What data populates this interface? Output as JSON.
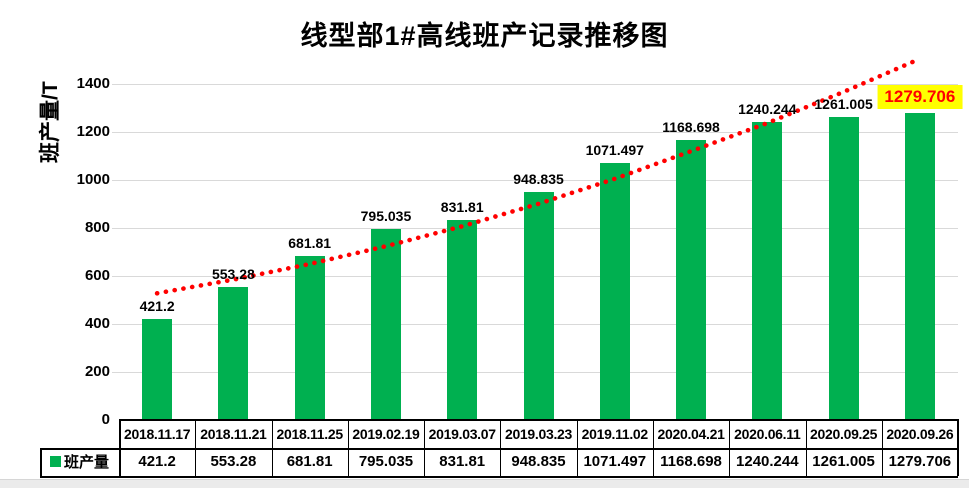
{
  "chart_data": {
    "type": "bar",
    "title": "线型部1#高线班产记录推移图",
    "ylabel": "班产量/T",
    "xlabel": "",
    "legend": "班产量",
    "categories": [
      "2018.11.17",
      "2018.11.21",
      "2018.11.25",
      "2019.02.19",
      "2019.03.07",
      "2019.03.23",
      "2019.11.02",
      "2020.04.21",
      "2020.06.11",
      "2020.09.25",
      "2020.09.26"
    ],
    "series": [
      {
        "name": "班产量",
        "values": [
          421.2,
          553.28,
          681.81,
          795.035,
          831.81,
          948.835,
          1071.497,
          1168.698,
          1240.244,
          1261.005,
          1279.706
        ]
      }
    ],
    "data_labels": [
      "421.2",
      "553.28",
      "681.81",
      "795.035",
      "831.81",
      "948.835",
      "1071.497",
      "1168.698",
      "1240.244",
      "1261.005",
      "1279.706"
    ],
    "yticks": [
      0,
      200,
      400,
      600,
      800,
      1000,
      1200,
      1400
    ],
    "ylim": [
      0,
      1500
    ],
    "grid": true,
    "data_table": true,
    "legend_position": "data-table-left",
    "trendline": {
      "type": "exponential",
      "style": "dotted",
      "color": "#FF0000",
      "values": [
        528,
        585,
        650,
        724,
        807,
        901,
        1005,
        1120,
        1237,
        1367,
        1505
      ]
    },
    "highlight": {
      "index": 10,
      "bg": "#FFFF00",
      "text": "#FF0000"
    },
    "colors": {
      "bar": "#00B050",
      "grid": "#D9D9D9",
      "label": "#000000",
      "table_border": "#000000",
      "background": "#FFFFFF"
    }
  }
}
